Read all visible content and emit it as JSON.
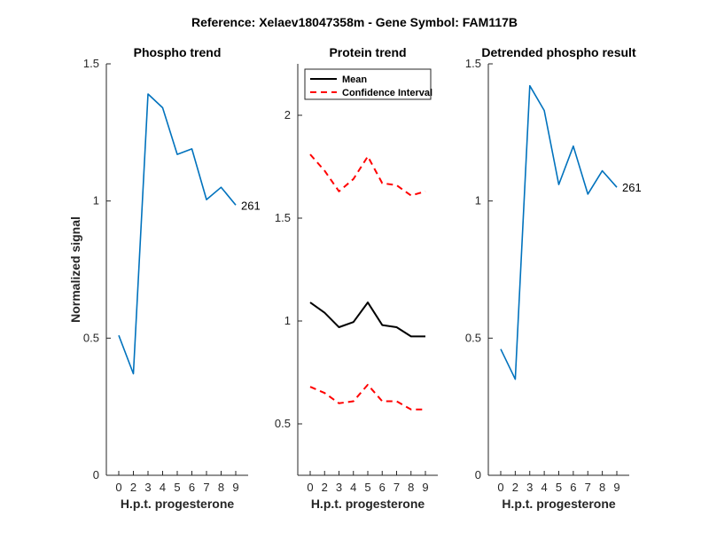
{
  "figure_title": "Reference:  Xelaev18047358m - Gene Symbol:  FAM117B",
  "chart_data": [
    {
      "type": "line",
      "title": "Phospho trend",
      "xlabel": "H.p.t. progesterone",
      "ylabel": "Normalized signal",
      "categories": [
        "0",
        "2",
        "3",
        "4",
        "5",
        "6",
        "7",
        "8",
        "9"
      ],
      "ylim": [
        0,
        1.5
      ],
      "yticks": [
        "0",
        "0.5",
        "1",
        "1.5"
      ],
      "series": [
        {
          "values": [
            0.51,
            0.37,
            1.39,
            1.34,
            1.17,
            1.19,
            1.005,
            1.05,
            0.985
          ],
          "color": "#0072BD",
          "style": "solid",
          "end_label": "261"
        }
      ],
      "legend": null
    },
    {
      "type": "line",
      "title": "Protein trend",
      "xlabel": "H.p.t. progesterone",
      "ylabel": "",
      "categories": [
        "0",
        "2",
        "3",
        "4",
        "5",
        "6",
        "7",
        "8",
        "9"
      ],
      "ylim": [
        0.25,
        2.25
      ],
      "yticks": [
        "0.5",
        "1",
        "1.5",
        "2"
      ],
      "series": [
        {
          "name": "Mean",
          "values": [
            1.09,
            1.04,
            0.97,
            0.995,
            1.09,
            0.98,
            0.97,
            0.925,
            0.925
          ],
          "color": "#000000",
          "style": "solid"
        },
        {
          "name": "Confidence Interval",
          "values": [
            1.81,
            1.73,
            1.63,
            1.69,
            1.8,
            1.67,
            1.66,
            1.61,
            1.63
          ],
          "color": "#FF0000",
          "style": "dashed"
        },
        {
          "values": [
            0.68,
            0.65,
            0.6,
            0.61,
            0.69,
            0.61,
            0.61,
            0.57,
            0.57
          ],
          "color": "#FF0000",
          "style": "dashed"
        }
      ],
      "legend": {
        "placement": "top-left",
        "entries": [
          "Mean",
          "Confidence Interval"
        ]
      }
    },
    {
      "type": "line",
      "title": "Detrended phospho result",
      "xlabel": "H.p.t. progesterone",
      "ylabel": "",
      "categories": [
        "0",
        "2",
        "3",
        "4",
        "5",
        "6",
        "7",
        "8",
        "9"
      ],
      "ylim": [
        0,
        1.5
      ],
      "yticks": [
        "0",
        "0.5",
        "1",
        "1.5"
      ],
      "series": [
        {
          "values": [
            0.46,
            0.35,
            1.42,
            1.33,
            1.06,
            1.2,
            1.025,
            1.11,
            1.05
          ],
          "color": "#0072BD",
          "style": "solid",
          "end_label": "261"
        }
      ],
      "legend": null
    }
  ]
}
